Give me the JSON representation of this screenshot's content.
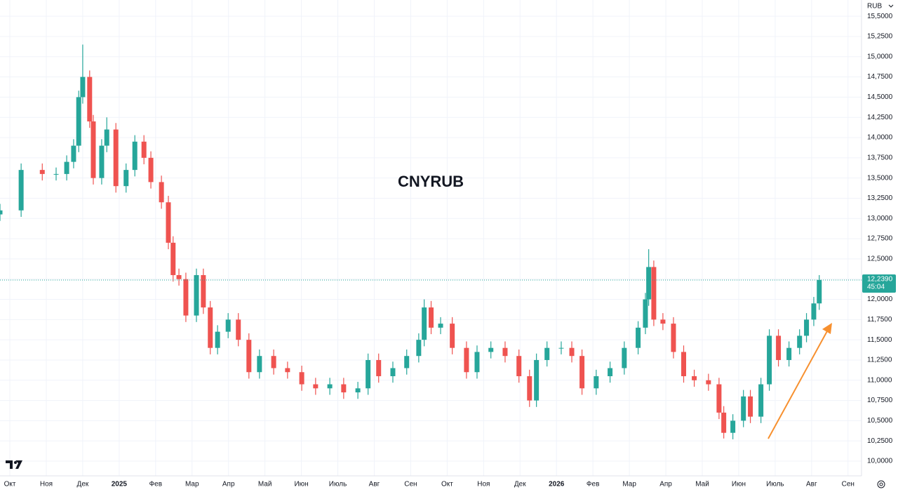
{
  "chart_data": {
    "type": "candlestick",
    "title": "CNYRUB",
    "currency": "RUB",
    "xlim": [
      -0.27,
      23.37
    ],
    "ylim": [
      9.818,
      15.701
    ],
    "grid": true,
    "xticks": [
      {
        "value": 0,
        "label": "Окт"
      },
      {
        "value": 1,
        "label": "Ноя"
      },
      {
        "value": 2,
        "label": "Дек"
      },
      {
        "value": 3,
        "label": "2025"
      },
      {
        "value": 4,
        "label": "Фев"
      },
      {
        "value": 5,
        "label": "Мар"
      },
      {
        "value": 6,
        "label": "Апр"
      },
      {
        "value": 7,
        "label": "Май"
      },
      {
        "value": 8,
        "label": "Июн"
      },
      {
        "value": 9,
        "label": "Июль"
      },
      {
        "value": 10,
        "label": "Авг"
      },
      {
        "value": 11,
        "label": "Сен"
      },
      {
        "value": 12,
        "label": "Окт"
      },
      {
        "value": 13,
        "label": "Ноя"
      },
      {
        "value": 14,
        "label": "Дек"
      },
      {
        "value": 15,
        "label": "2026"
      },
      {
        "value": 16,
        "label": "Фев"
      },
      {
        "value": 17,
        "label": "Мар"
      },
      {
        "value": 18,
        "label": "Апр"
      },
      {
        "value": 19,
        "label": "Май"
      },
      {
        "value": 20,
        "label": "Июн"
      },
      {
        "value": 21,
        "label": "Июль"
      },
      {
        "value": 22,
        "label": "Авг"
      },
      {
        "value": 23,
        "label": "Сен"
      }
    ],
    "yticks": [
      {
        "value": 10,
        "label": "10,0000"
      },
      {
        "value": 10.25,
        "label": "10,2500"
      },
      {
        "value": 10.5,
        "label": "10,5000"
      },
      {
        "value": 10.75,
        "label": "10,7500"
      },
      {
        "value": 11,
        "label": "11,0000"
      },
      {
        "value": 11.25,
        "label": "11,2500"
      },
      {
        "value": 11.5,
        "label": "11,5000"
      },
      {
        "value": 11.75,
        "label": "11,7500"
      },
      {
        "value": 12,
        "label": "12,0000"
      },
      {
        "value": 12.25,
        "label": "12,2500"
      },
      {
        "value": 12.5,
        "label": "12,5000"
      },
      {
        "value": 12.75,
        "label": "12,7500"
      },
      {
        "value": 13,
        "label": "13,0000"
      },
      {
        "value": 13.25,
        "label": "13,2500"
      },
      {
        "value": 13.5,
        "label": "13,5000"
      },
      {
        "value": 13.75,
        "label": "13,7500"
      },
      {
        "value": 14,
        "label": "14,0000"
      },
      {
        "value": 14.25,
        "label": "14,2500"
      },
      {
        "value": 14.5,
        "label": "14,5000"
      },
      {
        "value": 14.75,
        "label": "14,7500"
      },
      {
        "value": 15,
        "label": "15,0000"
      },
      {
        "value": 15.25,
        "label": "15,2500"
      },
      {
        "value": 15.5,
        "label": "15,5000"
      }
    ],
    "last_price": {
      "value": 12.239,
      "label": "12,2390",
      "timer": "45:04",
      "color": "#26a69a"
    },
    "up_color": "#26a69a",
    "down_color": "#ef5350",
    "x": [
      -0.27,
      0.31,
      0.89,
      1.27,
      1.56,
      1.75,
      1.89,
      2.0,
      2.19,
      2.29,
      2.52,
      2.66,
      2.91,
      3.19,
      3.43,
      3.68,
      3.87,
      4.16,
      4.35,
      4.48,
      4.64,
      4.83,
      5.12,
      5.31,
      5.5,
      5.7,
      5.99,
      6.27,
      6.56,
      6.85,
      7.24,
      7.62,
      8.01,
      8.39,
      8.78,
      9.16,
      9.55,
      9.83,
      10.12,
      10.51,
      10.89,
      11.22,
      11.37,
      11.56,
      11.82,
      12.14,
      12.53,
      12.82,
      13.2,
      13.59,
      13.97,
      14.26,
      14.45,
      14.74,
      15.13,
      15.42,
      15.7,
      16.09,
      16.47,
      16.86,
      17.24,
      17.44,
      17.53,
      17.67,
      17.92,
      18.21,
      18.49,
      18.78,
      19.17,
      19.46,
      19.59,
      19.84,
      20.13,
      20.32,
      20.61,
      20.84,
      21.09,
      21.38,
      21.67,
      21.86,
      22.06,
      22.21
    ],
    "open": [
      13.05,
      13.1,
      13.6,
      13.55,
      13.55,
      13.7,
      13.9,
      14.5,
      14.75,
      14.2,
      13.5,
      13.9,
      14.1,
      13.4,
      13.6,
      13.95,
      13.75,
      13.45,
      13.2,
      12.7,
      12.3,
      12.25,
      11.8,
      12.3,
      11.9,
      11.4,
      11.6,
      11.75,
      11.5,
      11.1,
      11.3,
      11.15,
      11.1,
      10.95,
      10.9,
      10.95,
      10.85,
      10.9,
      11.25,
      11.05,
      11.15,
      11.3,
      11.5,
      11.9,
      11.65,
      11.7,
      11.4,
      11.1,
      11.35,
      11.4,
      11.3,
      11.05,
      10.75,
      11.25,
      11.4,
      11.4,
      11.3,
      10.9,
      11.05,
      11.15,
      11.4,
      11.65,
      12.0,
      12.4,
      11.75,
      11.7,
      11.35,
      11.05,
      11.0,
      10.95,
      10.6,
      10.35,
      10.5,
      10.8,
      10.55,
      10.95,
      11.55,
      11.25,
      11.4,
      11.55,
      11.75,
      11.95
    ],
    "high": [
      13.18,
      13.68,
      13.68,
      13.63,
      13.78,
      13.98,
      14.58,
      15.15,
      14.83,
      14.28,
      13.98,
      14.25,
      14.18,
      13.68,
      14.03,
      14.03,
      13.83,
      13.53,
      13.28,
      12.78,
      12.38,
      12.33,
      12.38,
      12.38,
      11.98,
      11.68,
      11.83,
      11.83,
      11.58,
      11.38,
      11.38,
      11.23,
      11.18,
      11.03,
      11.03,
      11.03,
      10.98,
      11.33,
      11.33,
      11.23,
      11.38,
      11.58,
      12.0,
      11.98,
      11.78,
      11.78,
      11.48,
      11.43,
      11.48,
      11.48,
      11.38,
      11.13,
      11.33,
      11.48,
      11.48,
      11.48,
      11.38,
      11.13,
      11.23,
      11.48,
      11.73,
      12.08,
      12.62,
      12.48,
      11.83,
      11.78,
      11.43,
      11.13,
      11.08,
      11.03,
      10.68,
      10.58,
      10.88,
      10.88,
      11.03,
      11.63,
      11.63,
      11.48,
      11.63,
      11.83,
      12.03,
      12.3
    ],
    "low": [
      12.97,
      13.02,
      13.47,
      13.47,
      13.47,
      13.62,
      13.82,
      14.42,
      14.12,
      13.42,
      13.42,
      13.82,
      13.32,
      13.32,
      13.52,
      13.67,
      13.37,
      13.12,
      12.62,
      12.22,
      12.17,
      11.72,
      11.72,
      11.82,
      11.32,
      11.32,
      11.52,
      11.42,
      11.02,
      11.02,
      11.07,
      11.02,
      10.87,
      10.82,
      10.82,
      10.77,
      10.77,
      10.82,
      10.97,
      10.97,
      11.07,
      11.22,
      11.42,
      11.57,
      11.57,
      11.32,
      11.02,
      11.02,
      11.27,
      11.22,
      10.97,
      10.67,
      10.67,
      11.17,
      11.32,
      11.22,
      10.82,
      10.82,
      10.97,
      11.07,
      11.32,
      11.57,
      11.92,
      11.67,
      11.62,
      11.27,
      10.97,
      10.92,
      10.87,
      10.52,
      10.28,
      10.27,
      10.42,
      10.47,
      10.47,
      10.87,
      11.17,
      11.17,
      11.32,
      11.47,
      11.67,
      11.87
    ],
    "close": [
      13.1,
      13.6,
      13.55,
      13.55,
      13.7,
      13.9,
      14.5,
      14.75,
      14.2,
      13.5,
      13.9,
      14.1,
      13.4,
      13.6,
      13.95,
      13.75,
      13.45,
      13.2,
      12.7,
      12.3,
      12.25,
      11.8,
      12.3,
      11.9,
      11.4,
      11.6,
      11.75,
      11.5,
      11.1,
      11.3,
      11.15,
      11.1,
      10.95,
      10.9,
      10.95,
      10.85,
      10.9,
      11.25,
      11.05,
      11.15,
      11.3,
      11.5,
      11.9,
      11.65,
      11.7,
      11.4,
      11.1,
      11.35,
      11.4,
      11.3,
      11.05,
      10.75,
      11.25,
      11.4,
      11.4,
      11.3,
      10.9,
      11.05,
      11.15,
      11.4,
      11.65,
      12.0,
      12.4,
      11.75,
      11.7,
      11.35,
      11.05,
      11.0,
      10.95,
      10.6,
      10.35,
      10.5,
      10.8,
      10.55,
      10.95,
      11.55,
      11.25,
      11.4,
      11.55,
      11.75,
      11.95,
      12.24
    ]
  }
}
